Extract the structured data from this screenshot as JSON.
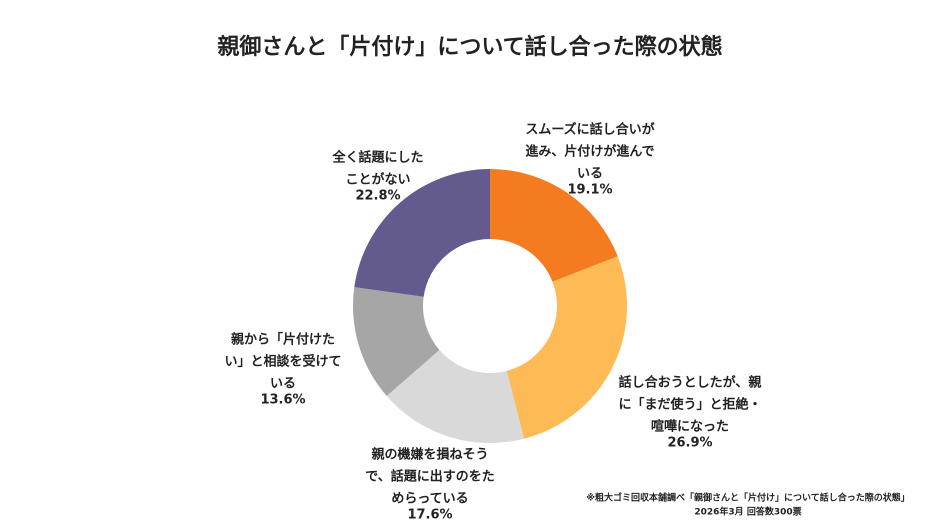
{
  "chart_data": {
    "type": "donut",
    "title": "親御さんと「片付け」について話し合った際の状態",
    "categories": [
      [
        "スムーズに話し合いが",
        "進み、片付けが進んで",
        "いる"
      ],
      [
        "話し合おうとしたが、親",
        "に「まだ使う」と拒絶・",
        "喧嘩になった"
      ],
      [
        "親の機嫌を損ねそう",
        "で、話題に出すのをた",
        "めらっている"
      ],
      [
        "親から「片付けた",
        "い」と相談を受けて",
        "いる"
      ],
      [
        "全く話題にした",
        "ことがない"
      ]
    ],
    "values": [
      19.1,
      26.9,
      17.6,
      13.6,
      22.8
    ],
    "value_labels": [
      "19.1%",
      "26.9%",
      "17.6%",
      "13.6%",
      "22.8%"
    ],
    "colors": [
      "#f47b20",
      "#fdba55",
      "#d9d9d9",
      "#a6a6a6",
      "#635a8e"
    ],
    "footnote": [
      "※粗大ゴミ回収本舗調べ「親御さんと「片付け」について話し合った際の状態」",
      "2026年3月 回答数300票"
    ]
  }
}
